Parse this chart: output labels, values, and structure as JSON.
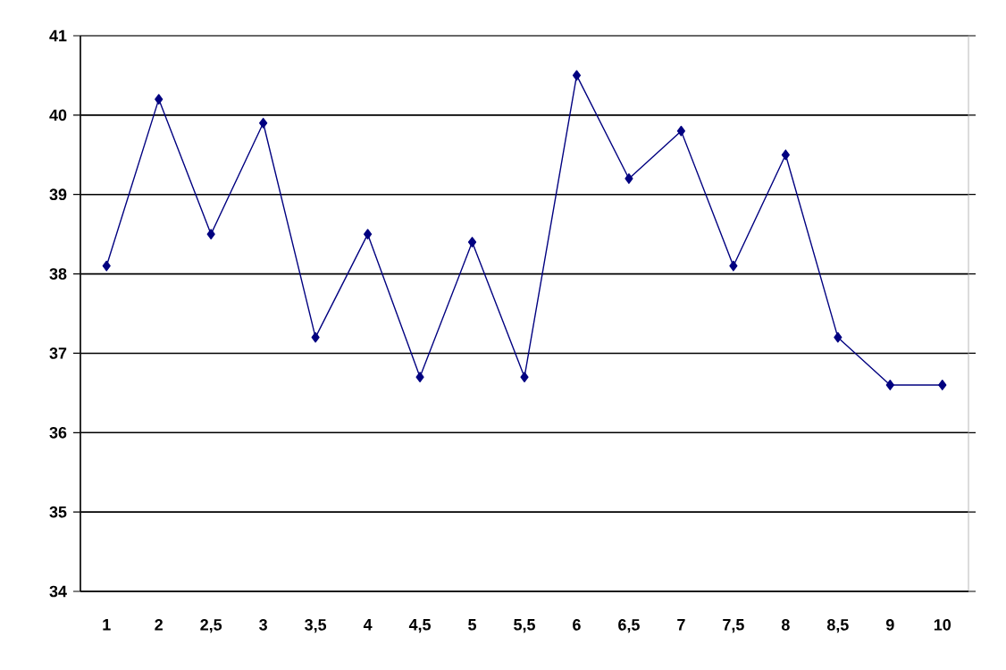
{
  "chart_data": {
    "type": "line",
    "categories": [
      "1",
      "2",
      "2,5",
      "3",
      "3,5",
      "4",
      "4,5",
      "5",
      "5,5",
      "6",
      "6,5",
      "7",
      "7,5",
      "8",
      "8,5",
      "9",
      "10"
    ],
    "series": [
      {
        "color": "#000080",
        "values": [
          38.1,
          40.2,
          38.5,
          39.9,
          37.2,
          38.5,
          36.7,
          38.4,
          36.7,
          40.5,
          39.2,
          39.8,
          38.1,
          39.5,
          37.2,
          36.6,
          36.6
        ]
      }
    ],
    "ylim": [
      34,
      41
    ],
    "yticks": [
      34,
      35,
      36,
      37,
      38,
      39,
      40,
      41
    ],
    "grid": "y",
    "marker": "diamond",
    "line_style": "solid"
  }
}
